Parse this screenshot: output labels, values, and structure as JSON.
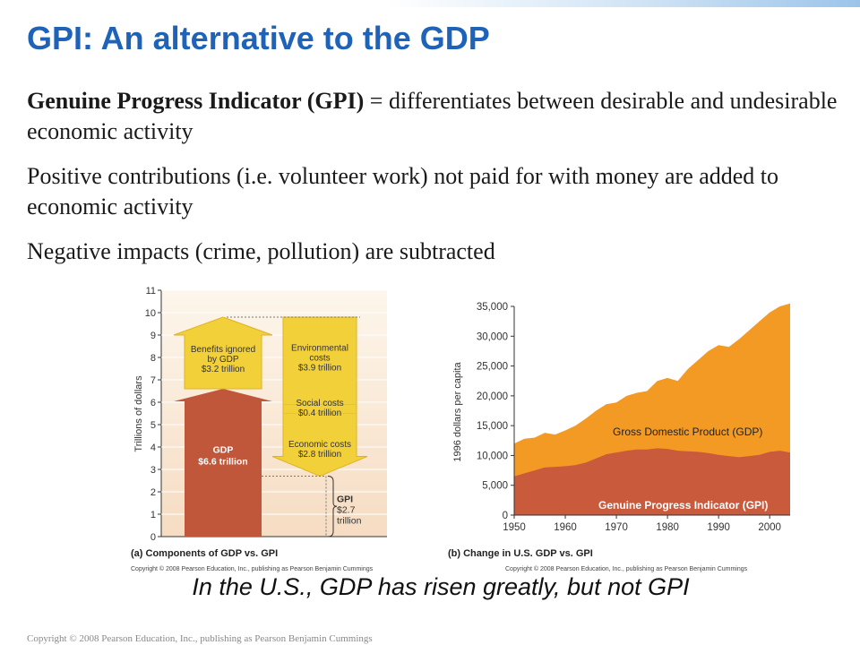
{
  "title": "GPI: An alternative to the GDP",
  "paragraphs": {
    "p1_bold": "Genuine Progress Indicator (GPI)",
    "p1_rest": " = differentiates between desirable and undesirable economic activity",
    "p2": "Positive contributions (i.e. volunteer work) not paid for with money are added to economic activity",
    "p3": "Negative impacts (crime, pollution) are subtracted"
  },
  "caption": "In the U.S., GDP has risen greatly, but not GPI",
  "footer": "Copyright © 2008 Pearson Education, Inc., publishing as Pearson Benjamin Cummings",
  "chart_data": [
    {
      "type": "bar",
      "subtitle": "(a) Components of GDP vs. GPI",
      "copyright": "Copyright © 2008 Pearson Education, Inc., publishing as Pearson Benjamin Cummings",
      "ylabel": "Trillions of dollars",
      "ylim": [
        0,
        11
      ],
      "yticks": [
        "0",
        "1",
        "2",
        "3",
        "4",
        "5",
        "6",
        "7",
        "8",
        "9",
        "10",
        "11"
      ],
      "gdp": {
        "label": "GDP",
        "value_label": "$6.6 trillion",
        "value": 6.6
      },
      "benefits": {
        "lines": [
          "Benefits ignored",
          "by GDP",
          "$3.2 trillion"
        ],
        "value": 3.2
      },
      "costs": [
        {
          "lines": [
            "Environmental",
            "costs",
            "$3.9 trillion"
          ],
          "value": 3.9
        },
        {
          "lines": [
            "Social costs",
            "$0.4 trillion"
          ],
          "value": 0.4
        },
        {
          "lines": [
            "Economic costs",
            "$2.8 trillion"
          ],
          "value": 2.8
        }
      ],
      "gpi": {
        "lines": [
          "GPI",
          "$2.7",
          "trillion"
        ],
        "value": 2.7
      },
      "colors": {
        "gdp": "#c0573a",
        "arrows": "#f2d03a",
        "bg_top": "#fdf6ec",
        "bg_bottom": "#f6dcc2"
      }
    },
    {
      "type": "area",
      "subtitle": "(b) Change in U.S. GDP vs. GPI",
      "copyright": "Copyright © 2008 Pearson Education, Inc., publishing as Pearson Benjamin Cummings",
      "ylabel": "1996 dollars per capita",
      "xlim": [
        1950,
        2004
      ],
      "ylim": [
        0,
        35000
      ],
      "xticks": [
        "1950",
        "1960",
        "1970",
        "1980",
        "1990",
        "2000"
      ],
      "yticks": [
        "0",
        "5,000",
        "10,000",
        "15,000",
        "20,000",
        "25,000",
        "30,000",
        "35,000"
      ],
      "x": [
        1950,
        1952,
        1954,
        1956,
        1958,
        1960,
        1962,
        1964,
        1966,
        1968,
        1970,
        1972,
        1974,
        1976,
        1978,
        1980,
        1982,
        1984,
        1986,
        1988,
        1990,
        1992,
        1994,
        1996,
        1998,
        2000,
        2002,
        2004
      ],
      "series": [
        {
          "name": "Gross Domestic Product (GDP)",
          "color": "#f39a24",
          "values": [
            12000,
            12800,
            13000,
            13800,
            13500,
            14200,
            15000,
            16200,
            17500,
            18600,
            18900,
            20000,
            20500,
            20800,
            22500,
            23000,
            22500,
            24500,
            26000,
            27500,
            28500,
            28200,
            29500,
            31000,
            32500,
            34000,
            35000,
            35500
          ]
        },
        {
          "name": "Genuine Progress Indicator (GPI)",
          "color": "#c95a3c",
          "values": [
            6500,
            7000,
            7500,
            8000,
            8100,
            8200,
            8400,
            8800,
            9500,
            10200,
            10500,
            10800,
            11000,
            11000,
            11200,
            11100,
            10800,
            10700,
            10600,
            10400,
            10100,
            9900,
            9700,
            9900,
            10100,
            10600,
            10800,
            10500
          ]
        }
      ]
    }
  ]
}
